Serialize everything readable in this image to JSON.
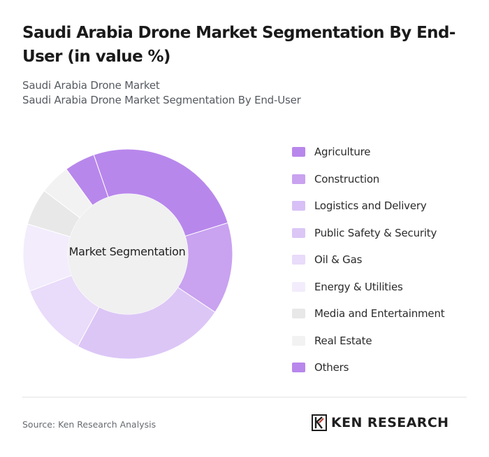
{
  "title": "Saudi Arabia Drone Market Segmentation By End-User (in value %)",
  "subtitle_1": "Saudi Arabia Drone Market",
  "subtitle_2": "Saudi Arabia Drone Market Segmentation By End-User",
  "source": "Source: Ken Research Analysis",
  "logo": {
    "text": "KEN RESEARCH",
    "icon": "ken-research-logo-icon"
  },
  "chart_data": {
    "type": "pie",
    "variant": "donut",
    "center_label": "Market Segmentation",
    "legend_position": "right",
    "categories": [
      "Agriculture",
      "Construction",
      "Logistics and Delivery",
      "Public Safety & Security",
      "Oil & Gas",
      "Energy & Utilities",
      "Media and Entertainment",
      "Real Estate",
      "Others"
    ],
    "values": [
      27,
      15,
      0,
      25,
      12,
      11,
      6,
      5,
      5
    ],
    "colors": [
      "#b887ec",
      "#c9a2f0",
      "#d8c0f6",
      "#dcc6f6",
      "#e9dbfa",
      "#f2ecfc",
      "#e8e8e8",
      "#f2f2f2",
      "#b887ec"
    ]
  }
}
